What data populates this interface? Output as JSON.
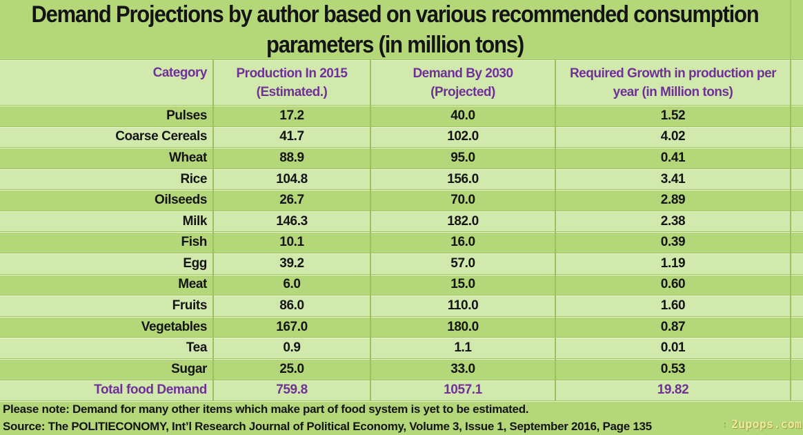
{
  "title": "Demand Projections by author based on various recommended consumption parameters (in million tons)",
  "header": {
    "columns": [
      {
        "label": "Category",
        "sub": ""
      },
      {
        "label": "Production In 2015",
        "sub": "(Estimated.)"
      },
      {
        "label": "Demand By 2030",
        "sub": "(Projected)"
      },
      {
        "label": "Required Growth in production per",
        "sub": "year (in Million tons)"
      }
    ]
  },
  "rows": [
    {
      "category": "Pulses",
      "production": "17.2",
      "demand": "40.0",
      "growth": "1.52"
    },
    {
      "category": "Coarse Cereals",
      "production": "41.7",
      "demand": "102.0",
      "growth": "4.02"
    },
    {
      "category": "Wheat",
      "production": "88.9",
      "demand": "95.0",
      "growth": "0.41"
    },
    {
      "category": "Rice",
      "production": "104.8",
      "demand": "156.0",
      "growth": "3.41"
    },
    {
      "category": "Oilseeds",
      "production": "26.7",
      "demand": "70.0",
      "growth": "2.89"
    },
    {
      "category": "Milk",
      "production": "146.3",
      "demand": "182.0",
      "growth": "2.38"
    },
    {
      "category": "Fish",
      "production": "10.1",
      "demand": "16.0",
      "growth": "0.39"
    },
    {
      "category": "Egg",
      "production": "39.2",
      "demand": "57.0",
      "growth": "1.19"
    },
    {
      "category": "Meat",
      "production": "6.0",
      "demand": "15.0",
      "growth": "0.60"
    },
    {
      "category": "Fruits",
      "production": "86.0",
      "demand": "110.0",
      "growth": "1.60"
    },
    {
      "category": "Vegetables",
      "production": "167.0",
      "demand": "180.0",
      "growth": "0.87"
    },
    {
      "category": "Tea",
      "production": "0.9",
      "demand": "1.1",
      "growth": "0.01"
    },
    {
      "category": "Sugar",
      "production": "25.0",
      "demand": "33.0",
      "growth": "0.53"
    },
    {
      "category": "Total food Demand",
      "production": "759.8",
      "demand": "1057.1",
      "growth": "19.82",
      "total": true
    }
  ],
  "notes": {
    "note": "Please note: Demand for many other items which make part of food system is yet to be estimated.",
    "source": "Source: The POLITIECONOMY, Int’l Research Journal of Political Economy, Volume 3, Issue 1, September 2016, Page 135"
  },
  "watermark": {
    "icon": ":",
    "text": "2upops.com"
  },
  "colors": {
    "bg_green": "#b3d779",
    "row_light": "#d2e9ad",
    "sep_dark": "#a0c25f",
    "sep_light": "#e9f5cf",
    "col_border": "#9dc05c",
    "purple": "#6f3198",
    "ink": "#141414",
    "watermark": "#efe8a2",
    "watermark_shadow": "#93a43f"
  },
  "chart_data": {
    "type": "table",
    "title": "Demand Projections by author based on various recommended consumption parameters (in million tons)",
    "columns": [
      "Category",
      "Production In 2015 (Estimated.)",
      "Demand By 2030 (Projected)",
      "Required Growth in production per year (in Million tons)"
    ],
    "categories": [
      "Pulses",
      "Coarse Cereals",
      "Wheat",
      "Rice",
      "Oilseeds",
      "Milk",
      "Fish",
      "Egg",
      "Meat",
      "Fruits",
      "Vegetables",
      "Tea",
      "Sugar"
    ],
    "series": [
      {
        "name": "Production In 2015 (Estimated.)",
        "values": [
          17.2,
          41.7,
          88.9,
          104.8,
          26.7,
          146.3,
          10.1,
          39.2,
          6.0,
          86.0,
          167.0,
          0.9,
          25.0
        ]
      },
      {
        "name": "Demand By 2030 (Projected)",
        "values": [
          40.0,
          102.0,
          95.0,
          156.0,
          70.0,
          182.0,
          16.0,
          57.0,
          15.0,
          110.0,
          180.0,
          1.1,
          33.0
        ]
      },
      {
        "name": "Required Growth in production per year (in Million tons)",
        "values": [
          1.52,
          4.02,
          0.41,
          3.41,
          2.89,
          2.38,
          0.39,
          1.19,
          0.6,
          1.6,
          0.87,
          0.01,
          0.53
        ]
      }
    ],
    "totals": {
      "label": "Total food Demand",
      "production": 759.8,
      "demand": 1057.1,
      "growth": 19.82
    },
    "footnote": "Please note: Demand for many other items which make part of food system is yet to be estimated.",
    "source": "Source: The POLITIECONOMY, Int’l Research Journal of Political Economy, Volume 3, Issue 1, September 2016, Page 135"
  }
}
